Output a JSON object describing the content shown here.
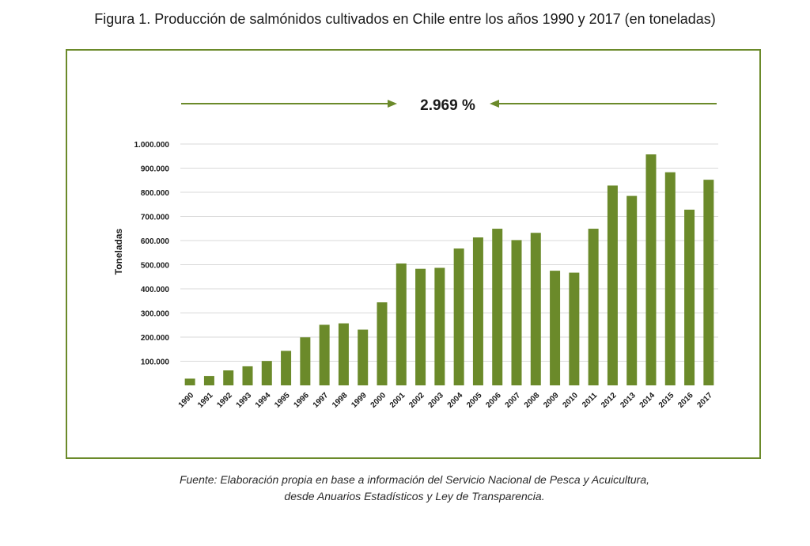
{
  "figure": {
    "title": "Figura 1. Producción de salmónidos cultivados en Chile entre los años 1990 y 2017 (en toneladas)",
    "source_line1": "Fuente: Elaboración propia en base a información del Servicio Nacional de Pesca y Acuicultura,",
    "source_line2": "desde Anuarios Estadísticos y Ley de Transparencia."
  },
  "chart_data": {
    "type": "bar",
    "title": "",
    "xlabel": "",
    "ylabel": "Toneladas",
    "growth_annotation": "2.969 %",
    "ylim": [
      0,
      1000000
    ],
    "yticks": [
      100000,
      200000,
      300000,
      400000,
      500000,
      600000,
      700000,
      800000,
      900000,
      1000000
    ],
    "ytick_labels": [
      "100.000",
      "200.000",
      "300.000",
      "400.000",
      "500.000",
      "600.000",
      "700.000",
      "800.000",
      "900.000",
      "1.000.000"
    ],
    "grid": true,
    "bar_color": "#6b8a2a",
    "categories": [
      "1990",
      "1991",
      "1992",
      "1993",
      "1994",
      "1995",
      "1996",
      "1997",
      "1998",
      "1999",
      "2000",
      "2001",
      "2002",
      "2003",
      "2004",
      "2005",
      "2006",
      "2007",
      "2008",
      "2009",
      "2010",
      "2011",
      "2012",
      "2013",
      "2014",
      "2015",
      "2016",
      "2017"
    ],
    "values": [
      28000,
      39000,
      62000,
      79000,
      101000,
      143000,
      199000,
      251000,
      257000,
      231000,
      344000,
      505000,
      483000,
      487000,
      567000,
      613000,
      649000,
      602000,
      632000,
      475000,
      467000,
      649000,
      828000,
      785000,
      957000,
      883000,
      728000,
      852000
    ]
  }
}
